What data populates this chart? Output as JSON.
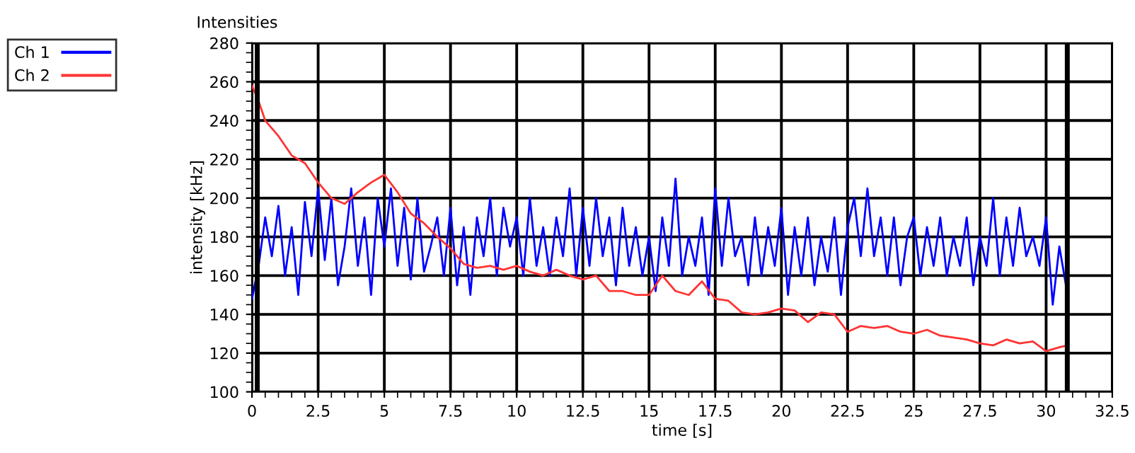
{
  "chart_data": {
    "type": "line",
    "title": "Intensities",
    "xlabel": "time [s]",
    "ylabel": "intensity [kHz]",
    "xlim": [
      0,
      32.5
    ],
    "ylim": [
      100,
      280
    ],
    "xticks": [
      0,
      2.5,
      5,
      7.5,
      10,
      12.5,
      15,
      17.5,
      20,
      22.5,
      25,
      27.5,
      30,
      32.5
    ],
    "yticks": [
      100,
      120,
      140,
      160,
      180,
      200,
      220,
      240,
      260,
      280
    ],
    "grid": true,
    "legend": "left",
    "line_style": "solid",
    "marker": "none",
    "ref_lines": [
      {
        "axis": "x",
        "value": 0.2,
        "label": null,
        "color": "#000000"
      },
      {
        "axis": "x",
        "value": 30.8,
        "label": null,
        "color": "#000000"
      }
    ],
    "series": [
      {
        "name": "Ch 1",
        "color": "#0000ff",
        "x": [
          0,
          0.25,
          0.5,
          0.75,
          1,
          1.25,
          1.5,
          1.75,
          2,
          2.25,
          2.5,
          2.75,
          3,
          3.25,
          3.5,
          3.75,
          4,
          4.25,
          4.5,
          4.75,
          5,
          5.25,
          5.5,
          5.75,
          6,
          6.25,
          6.5,
          6.75,
          7,
          7.25,
          7.5,
          7.75,
          8,
          8.25,
          8.5,
          8.75,
          9,
          9.25,
          9.5,
          9.75,
          10,
          10.25,
          10.5,
          10.75,
          11,
          11.25,
          11.5,
          11.75,
          12,
          12.25,
          12.5,
          12.75,
          13,
          13.25,
          13.5,
          13.75,
          14,
          14.25,
          14.5,
          14.75,
          15,
          15.25,
          15.5,
          15.75,
          16,
          16.25,
          16.5,
          16.75,
          17,
          17.25,
          17.5,
          17.75,
          18,
          18.25,
          18.5,
          18.75,
          19,
          19.25,
          19.5,
          19.75,
          20,
          20.25,
          20.5,
          20.75,
          21,
          21.25,
          21.5,
          21.75,
          22,
          22.25,
          22.5,
          22.75,
          23,
          23.25,
          23.5,
          23.75,
          24,
          24.25,
          24.5,
          24.75,
          25,
          25.25,
          25.5,
          25.75,
          26,
          26.25,
          26.5,
          26.75,
          27,
          27.25,
          27.5,
          27.75,
          28,
          28.25,
          28.5,
          28.75,
          29,
          29.25,
          29.5,
          29.75,
          30,
          30.25,
          30.5,
          30.75
        ],
        "values": [
          148,
          165,
          190,
          170,
          196,
          160,
          185,
          150,
          198,
          170,
          205,
          168,
          200,
          155,
          175,
          205,
          165,
          190,
          150,
          200,
          175,
          205,
          165,
          195,
          158,
          200,
          162,
          175,
          190,
          160,
          195,
          155,
          185,
          150,
          190,
          170,
          200,
          160,
          195,
          175,
          190,
          160,
          200,
          165,
          185,
          160,
          190,
          170,
          205,
          160,
          195,
          165,
          200,
          170,
          190,
          155,
          195,
          165,
          185,
          160,
          180,
          152,
          190,
          165,
          210,
          160,
          180,
          165,
          190,
          150,
          205,
          165,
          200,
          170,
          180,
          155,
          190,
          160,
          185,
          165,
          195,
          150,
          185,
          160,
          190,
          155,
          180,
          162,
          190,
          150,
          185,
          200,
          170,
          205,
          170,
          190,
          160,
          190,
          155,
          180,
          190,
          160,
          185,
          165,
          190,
          160,
          180,
          165,
          190,
          155,
          180,
          165,
          200,
          160,
          190,
          165,
          195,
          170,
          180,
          165,
          190,
          145,
          175,
          155
        ]
      },
      {
        "name": "Ch 2",
        "color": "#ff3333",
        "x": [
          0,
          0.25,
          0.5,
          1,
          1.5,
          2,
          2.5,
          3,
          3.5,
          4,
          4.5,
          5,
          5.5,
          6,
          6.5,
          7,
          7.5,
          8,
          8.5,
          9,
          9.5,
          10,
          10.5,
          11,
          11.5,
          12,
          12.5,
          13,
          13.5,
          14,
          14.5,
          15,
          15.5,
          16,
          16.5,
          17,
          17.5,
          18,
          18.5,
          19,
          19.5,
          20,
          20.5,
          21,
          21.5,
          22,
          22.5,
          23,
          23.5,
          24,
          24.5,
          25,
          25.5,
          26,
          26.5,
          27,
          27.5,
          28,
          28.5,
          29,
          29.5,
          30,
          30.5,
          30.8
        ],
        "values": [
          258,
          250,
          240,
          232,
          222,
          218,
          208,
          200,
          197,
          203,
          208,
          212,
          203,
          192,
          187,
          180,
          174,
          166,
          164,
          165,
          163,
          165,
          162,
          160,
          163,
          160,
          158,
          160,
          152,
          152,
          150,
          150,
          160,
          152,
          150,
          157,
          148,
          147,
          141,
          140,
          141,
          143,
          142,
          136,
          141,
          140,
          131,
          134,
          133,
          134,
          131,
          130,
          132,
          129,
          128,
          127,
          125,
          124,
          127,
          125,
          126,
          121,
          123,
          124
        ]
      }
    ]
  }
}
